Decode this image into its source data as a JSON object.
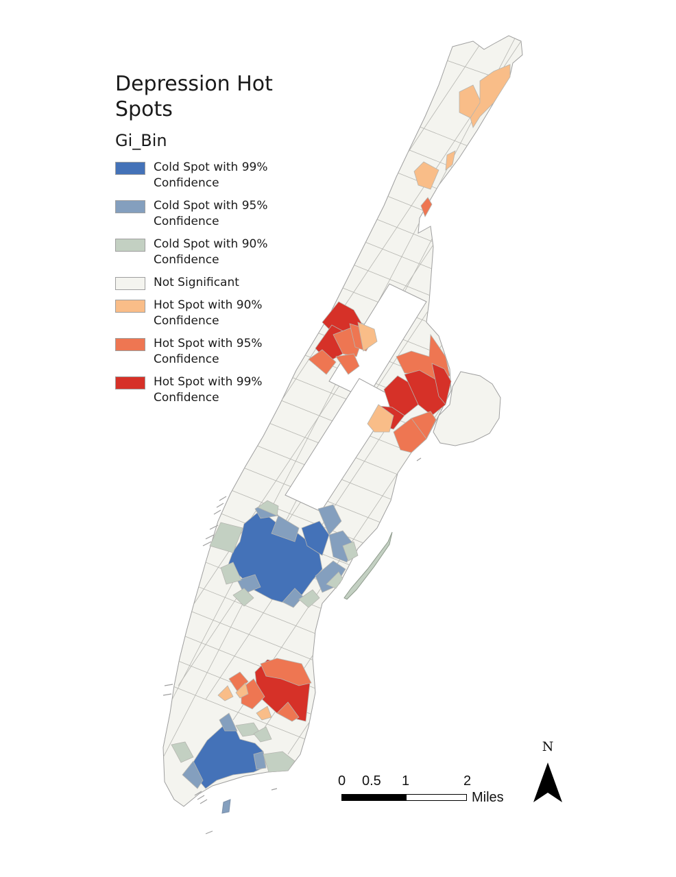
{
  "legend": {
    "title": "Depression Hot Spots",
    "field": "Gi_Bin",
    "items": [
      {
        "label": "Cold Spot with 99% Confidence",
        "color": "#4472b8"
      },
      {
        "label": "Cold Spot with 95% Confidence",
        "color": "#849fbe"
      },
      {
        "label": "Cold Spot with 90% Confidence",
        "color": "#c3d0c2"
      },
      {
        "label": "Not Significant",
        "color": "#f4f4ef"
      },
      {
        "label": "Hot Spot with 90% Confidence",
        "color": "#f9bd88"
      },
      {
        "label": "Hot Spot with 95% Confidence",
        "color": "#ee7652"
      },
      {
        "label": "Hot Spot with 99% Confidence",
        "color": "#d63128"
      }
    ]
  },
  "scale_bar": {
    "ticks": [
      "0",
      "0.5",
      "1",
      "2"
    ],
    "units": "Miles"
  },
  "north_arrow": {
    "label": "N"
  }
}
